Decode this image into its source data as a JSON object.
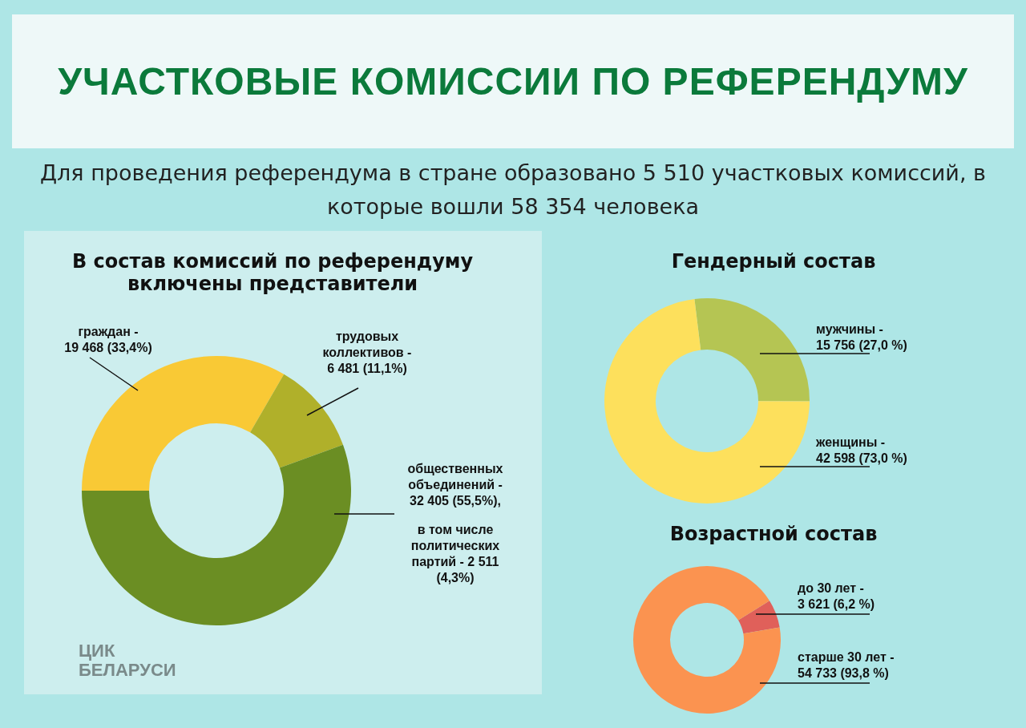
{
  "chart_data": [
    {
      "type": "other",
      "title": "УЧАСТКОВЫЕ КОМИССИИ ПО РЕФЕРЕНДУМУ",
      "subtitle": "Для проведения референдума в стране образовано 5 510 участковых комиссий, в которые вошли 58 354 человека",
      "annotations": [
        "ЦИК БЕЛАРУСИ"
      ]
    },
    {
      "type": "donut",
      "title": "В состав комиссий по референдуму включены представители",
      "categories": [
        "граждан -",
        "трудовых коллективов -",
        "общественных объединений -"
      ],
      "values": [
        19468,
        6481,
        32405
      ],
      "colors": [
        "#f9c935",
        "#b0b02a",
        "#6b8e23"
      ],
      "value_labels": [
        "19 468 (33,4%)",
        "6 481 (11,1%)",
        "32 405 (55,5%),"
      ],
      "annotations": [
        "в том числе политических партий - 2 511 (4,3%)"
      ]
    },
    {
      "type": "donut",
      "title": "Гендерный состав",
      "categories": [
        "мужчины -",
        "женщины -"
      ],
      "values": [
        15756,
        42598
      ],
      "colors": [
        "#b5c553",
        "#fde05c"
      ],
      "value_labels": [
        "15 756 (27,0 %)",
        "42 598 (73,0 %)"
      ]
    },
    {
      "type": "donut",
      "title": "Возрастной состав",
      "categories": [
        "до 30 лет -",
        "старше 30 лет -"
      ],
      "values": [
        3621,
        54733
      ],
      "colors": [
        "#e0605a",
        "#fb9350"
      ],
      "value_labels": [
        "3 621 (6,2 %)",
        "54 733 (93,8 %)"
      ]
    }
  ]
}
